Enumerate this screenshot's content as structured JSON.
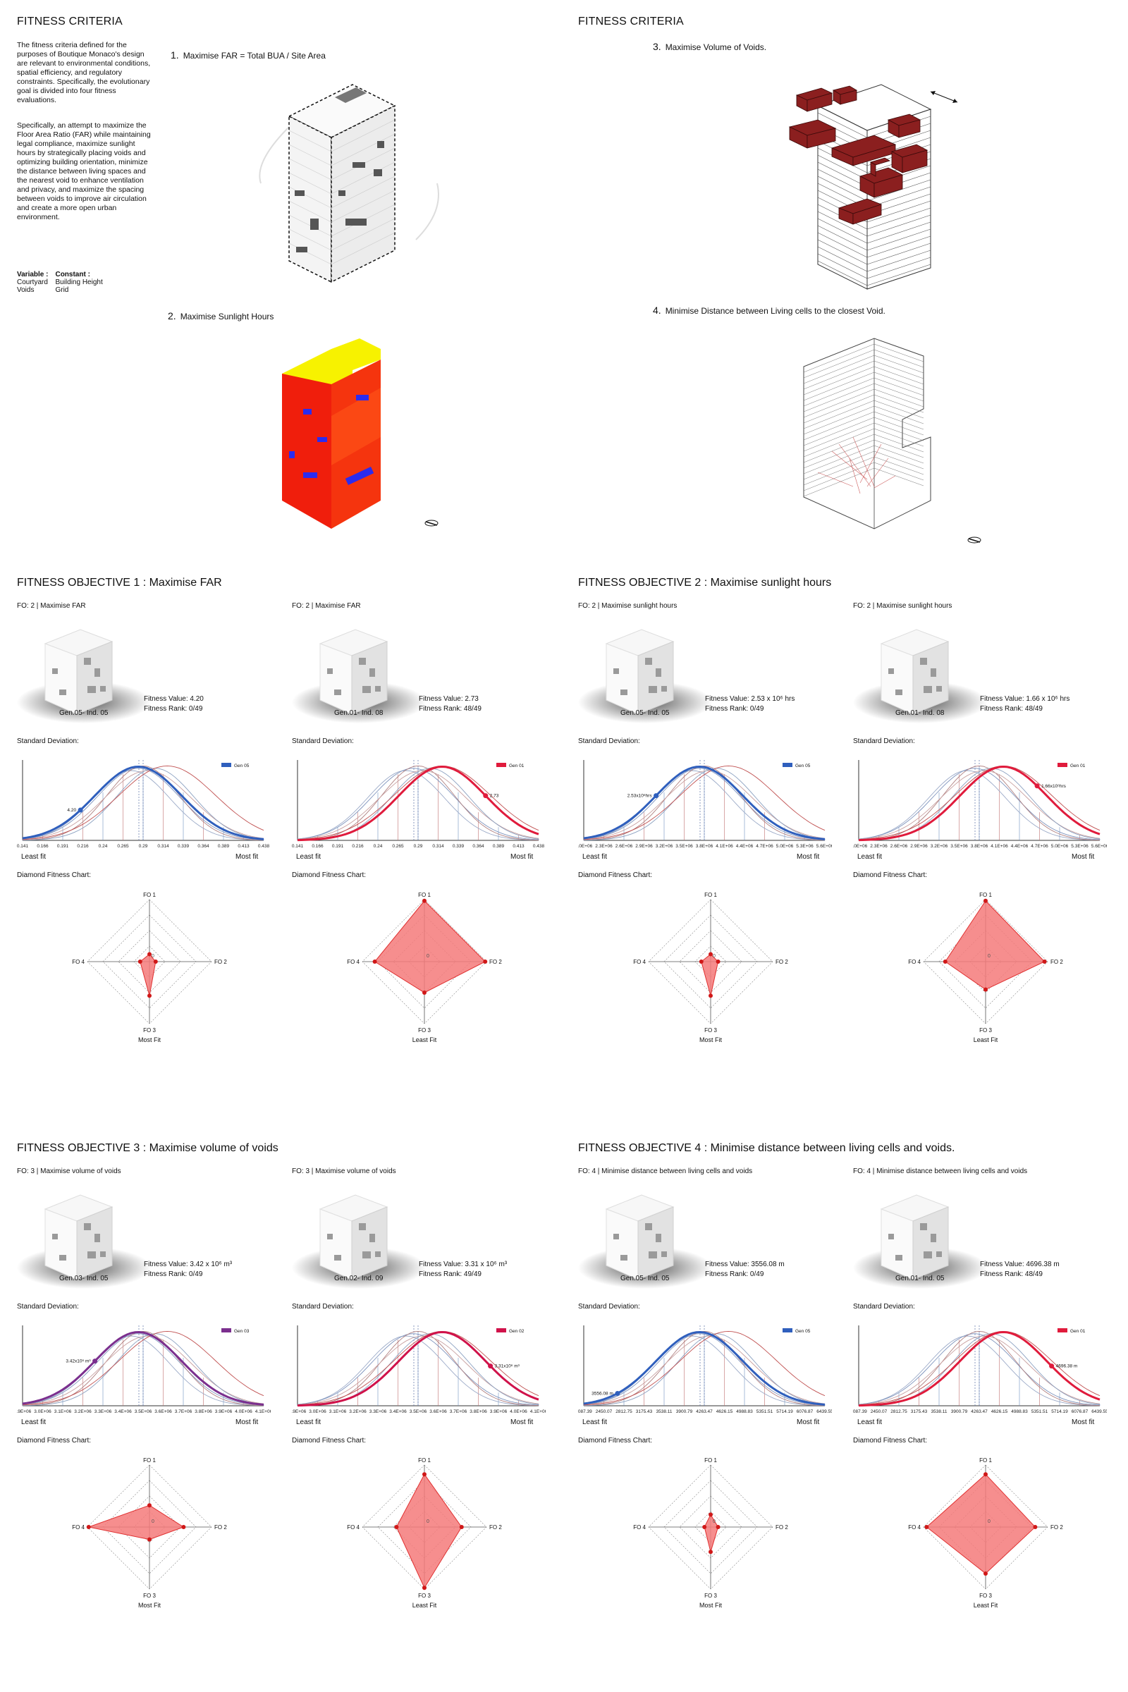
{
  "colors": {
    "blue": "#2f5fbd",
    "red": "#e01b3c",
    "purple": "#7b2f8e",
    "crimson": "#d0124a",
    "void": "#8b1f1f",
    "fill": "#f47a7a"
  },
  "criteria": {
    "left_title": "FITNESS CRITERIA",
    "right_title": "FITNESS CRITERIA",
    "intro1": "The fitness criteria defined for the purposes of Boutique Monaco's design are relevant to environmental conditions, spatial efficiency, and regulatory constraints. Specifically, the evolutionary goal is divided into four fitness evaluations.",
    "intro2": "Specifically, an attempt to maximize the Floor Area Ratio (FAR) while maintaining legal compliance, maximize sunlight hours by strategically placing voids and optimizing building orientation, minimize the distance between living spaces and the nearest void to enhance ventilation and privacy, and maximize the spacing between voids to improve air circulation and create a more open urban environment.",
    "variable_label": "Variable :",
    "variable_items": [
      "Courtyard",
      "Voids"
    ],
    "constant_label": "Constant :",
    "constant_items": [
      "Building Height",
      "Grid"
    ],
    "items": [
      {
        "num": "1.",
        "text": "Maximise FAR = Total BUA / Site Area"
      },
      {
        "num": "2.",
        "text": "Maximise Sunlight Hours"
      },
      {
        "num": "3.",
        "text": "Maximise Volume of Voids."
      },
      {
        "num": "4.",
        "text": "Minimise Distance between Living cells to the closest Void."
      }
    ]
  },
  "labels": {
    "std": "Standard Deviation:",
    "diamond": "Diamond Fitness Chart:",
    "least_fit": "Least fit",
    "most_fit": "Most fit",
    "axes": [
      "FO 1",
      "FO 2",
      "FO 3",
      "FO 4"
    ],
    "zero": "0"
  },
  "objectives": [
    {
      "title_prefix": "FITNESS OBJECTIVE 1 : ",
      "title_main": "Maximise FAR",
      "x_ticks": [
        "0.141",
        "0.166",
        "0.191",
        "0.216",
        "0.24",
        "0.265",
        "0.29",
        "0.314",
        "0.339",
        "0.364",
        "0.389",
        "0.413",
        "0.438"
      ],
      "panels": [
        {
          "fo": "FO: 2 | Maximise FAR",
          "value": "Fitness Value: 4.20",
          "rank": "Fitness Rank: 0/49",
          "gen": "Gen.05- Ind. 05",
          "legend": "Gen 05",
          "color_key": "blue",
          "marker_label": "4.20",
          "marker_pos": 0.24,
          "diamond": {
            "values": [
              0.12,
              0.1,
              0.55,
              0.15
            ],
            "caption": "Most Fit"
          }
        },
        {
          "fo": "FO: 2 | Maximise FAR",
          "value": "Fitness Value: 2.73",
          "rank": "Fitness Rank: 48/49",
          "gen": "Gen.01- Ind. 08",
          "legend": "Gen 01",
          "color_key": "red",
          "marker_label": "2.73",
          "marker_pos": 0.78,
          "diamond": {
            "values": [
              0.98,
              0.98,
              0.5,
              0.8
            ],
            "caption": "Least Fit"
          }
        }
      ]
    },
    {
      "title_prefix": "FITNESS OBJECTIVE 2 : ",
      "title_main": "Maximise sunlight hours",
      "x_ticks": [
        "2.0E+06",
        "2.3E+06",
        "2.6E+06",
        "2.9E+06",
        "3.2E+06",
        "3.5E+06",
        "3.8E+06",
        "4.1E+06",
        "4.4E+06",
        "4.7E+06",
        "5.0E+06",
        "5.3E+06",
        "5.6E+06"
      ],
      "panels": [
        {
          "fo": "FO: 2 | Maximise sunlight hours",
          "value": "Fitness Value: 2.53 x 10⁶ hrs",
          "rank": "Fitness Rank: 0/49",
          "gen": "Gen.05- Ind. 05",
          "legend": "Gen 05",
          "color_key": "blue",
          "marker_label": "2.53x10⁶hrs",
          "marker_pos": 0.3,
          "diamond": {
            "values": [
              0.12,
              0.12,
              0.55,
              0.15
            ],
            "caption": "Most Fit"
          }
        },
        {
          "fo": "FO: 2 | Maximise sunlight hours",
          "value": "Fitness Value: 1.66 x 10⁶ hrs",
          "rank": "Fitness Rank: 48/49",
          "gen": "Gen.01- Ind. 08",
          "legend": "Gen 01",
          "color_key": "red",
          "marker_label": "1.66x10⁶hrs",
          "marker_pos": 0.74,
          "diamond": {
            "values": [
              0.98,
              0.95,
              0.45,
              0.65
            ],
            "caption": "Least Fit"
          }
        }
      ]
    },
    {
      "title_prefix": "FITNESS OBJECTIVE 3 : ",
      "title_main": "Maximise volume of voids",
      "x_ticks": [
        "2.9E+06",
        "3.0E+06",
        "3.1E+06",
        "3.2E+06",
        "3.3E+06",
        "3.4E+06",
        "3.5E+06",
        "3.6E+06",
        "3.7E+06",
        "3.8E+06",
        "3.9E+06",
        "4.0E+06",
        "4.1E+06"
      ],
      "panels": [
        {
          "fo": "FO: 3 | Maximise volume of voids",
          "value": "Fitness Value: 3.42 x 10⁶ m³",
          "rank": "Fitness Rank: 0/49",
          "gen": "Gen.03- Ind. 05",
          "legend": "Gen 03",
          "color_key": "purple",
          "marker_label": "3.42x10⁶ m³",
          "marker_pos": 0.3,
          "diamond": {
            "values": [
              0.35,
              0.55,
              0.2,
              0.98
            ],
            "caption": "Most Fit"
          }
        },
        {
          "fo": "FO: 3 | Maximise volume of voids",
          "value": "Fitness Value: 3.31 x 10⁶ m³",
          "rank": "Fitness Rank: 49/49",
          "gen": "Gen.02- Ind. 09",
          "legend": "Gen 02",
          "color_key": "crimson",
          "marker_label": "3.31x10⁶ m³",
          "marker_pos": 0.8,
          "diamond": {
            "values": [
              0.85,
              0.6,
              0.98,
              0.45
            ],
            "caption": "Least Fit"
          }
        }
      ]
    },
    {
      "title_prefix": "FITNESS OBJECTIVE 4 : ",
      "title_main": "Minimise distance between living cells and voids.",
      "x_ticks": [
        "2087.39",
        "2450.07",
        "2812.75",
        "3175.43",
        "3538.11",
        "3900.79",
        "4263.47",
        "4626.15",
        "4988.83",
        "5351.51",
        "5714.19",
        "6076.87",
        "6439.55"
      ],
      "panels": [
        {
          "fo": "FO: 4 | Minimise distance between living cells and voids",
          "value": "Fitness Value: 3556.08 m",
          "rank": "Fitness Rank: 0/49",
          "gen": "Gen.05- Ind. 05",
          "legend": "Gen 05",
          "color_key": "blue",
          "marker_label": "3556.08 m",
          "marker_pos": 0.14,
          "diamond": {
            "values": [
              0.2,
              0.12,
              0.4,
              0.1
            ],
            "caption": "Most Fit"
          }
        },
        {
          "fo": "FO: 4 | Minimise distance between living cells and voids",
          "value": "Fitness Value: 4696.38 m",
          "rank": "Fitness Rank: 48/49",
          "gen": "Gen.01- Ind. 05",
          "legend": "Gen 01",
          "color_key": "red",
          "marker_label": "4696.38 m",
          "marker_pos": 0.8,
          "diamond": {
            "values": [
              0.85,
              0.8,
              0.75,
              0.95
            ],
            "caption": "Least Fit"
          }
        }
      ]
    }
  ]
}
